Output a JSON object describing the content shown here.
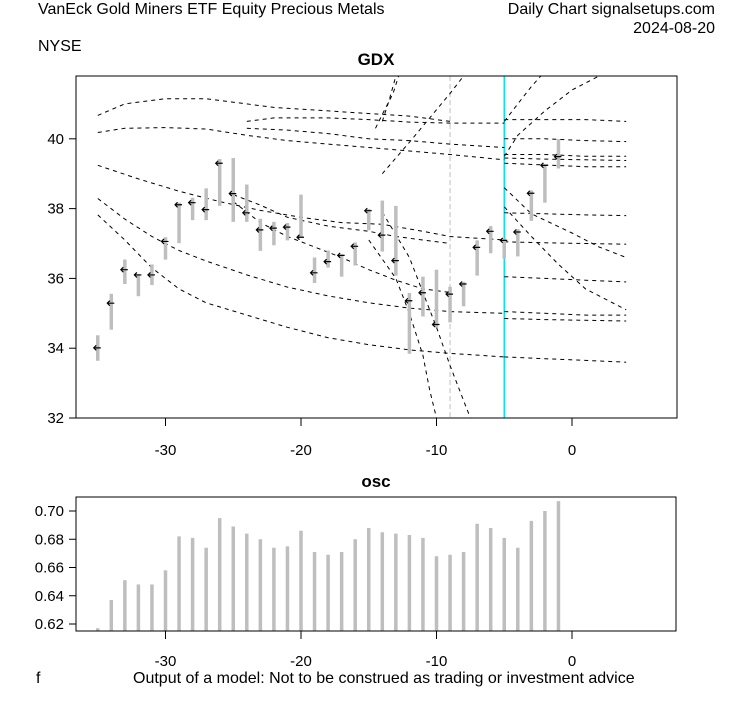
{
  "header": {
    "title_left": "VanEck Gold Miners ETF Equity Precious Metals",
    "title_right": "Daily Chart signalsetups.com",
    "date": "2024-08-20",
    "exchange": "NYSE"
  },
  "footer": {
    "left": "f",
    "note": "Output of a model: Not to be construed as trading or investment advice"
  },
  "colors": {
    "bar": "#bebebe",
    "curve": "#000000",
    "marker_line": "#00e5ee",
    "reference_line": "#bebebe"
  },
  "chart_data": [
    {
      "type": "line",
      "title": "GDX",
      "xlabel": "",
      "ylabel": "",
      "xlim": [
        -36.5,
        7.8
      ],
      "ylim": [
        32,
        41.8
      ],
      "x_ticks": [
        -30,
        -20,
        -10,
        0
      ],
      "x_tick_labels": [
        "-30",
        "-20",
        "-10",
        "0"
      ],
      "y_ticks": [
        32,
        34,
        36,
        38,
        40
      ],
      "y_tick_labels": [
        "32",
        "34",
        "36",
        "38",
        "40"
      ],
      "grid": false,
      "vertical_lines": [
        {
          "x": -9,
          "style": "dashed",
          "color": "#bebebe"
        },
        {
          "x": -5,
          "style": "solid",
          "color": "#00e5ee"
        }
      ],
      "bars": {
        "x": [
          -35,
          -34,
          -33,
          -32,
          -31,
          -30,
          -29,
          -28,
          -27,
          -26,
          -25,
          -24,
          -23,
          -22,
          -21,
          -20,
          -19,
          -18,
          -17,
          -16,
          -15,
          -14,
          -13,
          -12,
          -11,
          -10,
          -9,
          -8,
          -7,
          -6,
          -5,
          -4,
          -3,
          -2,
          -1
        ],
        "high": [
          34.37,
          35.56,
          36.54,
          36.13,
          36.4,
          37.18,
          38.17,
          38.31,
          38.58,
          39.42,
          39.45,
          38.69,
          37.71,
          37.62,
          37.59,
          38.4,
          36.6,
          36.8,
          36.69,
          37.03,
          37.99,
          38.23,
          38.08,
          35.58,
          36.05,
          36.25,
          35.76,
          35.9,
          37.09,
          37.5,
          37.15,
          37.41,
          38.52,
          39.28,
          39.99
        ],
        "low": [
          33.64,
          34.53,
          35.84,
          35.49,
          35.81,
          36.54,
          37.01,
          37.67,
          37.67,
          38.08,
          37.62,
          37.62,
          36.79,
          36.95,
          37.09,
          37.18,
          35.87,
          36.31,
          36.05,
          36.37,
          37.38,
          36.77,
          36.08,
          33.84,
          34.91,
          34.59,
          34.74,
          35.2,
          36.08,
          36.72,
          36.57,
          36.63,
          37.65,
          38.17,
          39.15
        ],
        "close": [
          34.01,
          35.29,
          36.25,
          36.1,
          36.1,
          37.06,
          38.11,
          38.17,
          37.97,
          39.3,
          38.43,
          37.88,
          37.39,
          37.44,
          37.47,
          37.18,
          36.16,
          36.48,
          36.66,
          36.92,
          37.94,
          37.24,
          36.51,
          35.36,
          35.59,
          34.68,
          35.55,
          35.84,
          36.89,
          37.35,
          37.09,
          37.33,
          38.44,
          39.24,
          39.49
        ]
      },
      "curves": [
        {
          "name": "band-1",
          "points": [
            [
              -35,
              40.67
            ],
            [
              -33,
              41.0
            ],
            [
              -30,
              41.15
            ],
            [
              -27,
              41.15
            ],
            [
              -25,
              41.05
            ],
            [
              -22,
              40.9
            ],
            [
              -18,
              40.8
            ],
            [
              -14,
              40.7
            ],
            [
              -12,
              40.65
            ],
            [
              -9,
              40.5
            ]
          ]
        },
        {
          "name": "band-2",
          "points": [
            [
              -35,
              40.18
            ],
            [
              -33,
              40.3
            ],
            [
              -30,
              40.32
            ],
            [
              -27,
              40.28
            ],
            [
              -24,
              40.1
            ],
            [
              -21,
              39.95
            ],
            [
              -18,
              39.85
            ],
            [
              -15,
              39.75
            ],
            [
              -12,
              39.65
            ],
            [
              -9,
              39.55
            ],
            [
              -5,
              39.4
            ]
          ]
        },
        {
          "name": "band-3",
          "points": [
            [
              -35,
              39.24
            ],
            [
              -32,
              38.85
            ],
            [
              -29,
              38.5
            ],
            [
              -26,
              38.2
            ],
            [
              -23,
              37.95
            ],
            [
              -20,
              37.75
            ],
            [
              -17,
              37.6
            ],
            [
              -14,
              37.55
            ],
            [
              -11,
              37.35
            ],
            [
              -9,
              37.2
            ],
            [
              -5,
              37.1
            ]
          ]
        },
        {
          "name": "band-4",
          "points": [
            [
              -35,
              38.29
            ],
            [
              -33,
              37.7
            ],
            [
              -31,
              37.2
            ],
            [
              -29,
              36.8
            ],
            [
              -27,
              36.5
            ],
            [
              -24,
              36.1
            ],
            [
              -21,
              35.75
            ],
            [
              -18,
              35.5
            ],
            [
              -15,
              35.3
            ],
            [
              -12,
              35.15
            ],
            [
              -9,
              35.05
            ],
            [
              -5,
              35.0
            ]
          ]
        },
        {
          "name": "band-5",
          "points": [
            [
              -35,
              37.82
            ],
            [
              -33,
              37.1
            ],
            [
              -31,
              36.3
            ],
            [
              -29,
              35.7
            ],
            [
              -27,
              35.3
            ],
            [
              -24,
              34.95
            ],
            [
              -21,
              34.6
            ],
            [
              -18,
              34.3
            ],
            [
              -15,
              34.1
            ],
            [
              -12,
              33.95
            ],
            [
              -9,
              33.85
            ],
            [
              -5,
              33.75
            ]
          ]
        },
        {
          "name": "band-6",
          "points": [
            [
              -24,
              40.5
            ],
            [
              -22,
              40.6
            ],
            [
              -18,
              40.6
            ],
            [
              -15,
              40.55
            ],
            [
              -12,
              40.48
            ],
            [
              -9,
              40.45
            ],
            [
              -5,
              40.45
            ]
          ]
        },
        {
          "name": "band-7",
          "points": [
            [
              -24,
              40.3
            ],
            [
              -21,
              40.25
            ],
            [
              -18,
              40.15
            ],
            [
              -15,
              40.0
            ],
            [
              -12,
              39.95
            ],
            [
              -9,
              39.85
            ],
            [
              -5,
              39.75
            ]
          ]
        },
        {
          "name": "band-8",
          "points": [
            [
              -25,
              38.4
            ],
            [
              -23,
              38.1
            ],
            [
              -21,
              37.75
            ],
            [
              -18,
              37.5
            ],
            [
              -15,
              37.35
            ],
            [
              -13,
              37.2
            ],
            [
              -11,
              37.1
            ],
            [
              -9,
              37.0
            ]
          ]
        },
        {
          "name": "band-9",
          "points": [
            [
              -25,
              38.2
            ],
            [
              -23,
              37.6
            ],
            [
              -21,
              37.2
            ],
            [
              -19,
              36.9
            ],
            [
              -17,
              36.6
            ],
            [
              -15,
              36.25
            ],
            [
              -13,
              35.95
            ],
            [
              -11,
              35.7
            ],
            [
              -9,
              35.6
            ]
          ]
        },
        {
          "name": "right-1",
          "points": [
            [
              -5,
              40.55
            ],
            [
              -2,
              40.55
            ],
            [
              1,
              40.55
            ],
            [
              4,
              40.5
            ]
          ]
        },
        {
          "name": "right-2",
          "points": [
            [
              -5,
              40.0
            ],
            [
              -2,
              40.0
            ],
            [
              1,
              39.95
            ],
            [
              4,
              39.92
            ]
          ]
        },
        {
          "name": "right-3",
          "points": [
            [
              -5,
              39.55
            ],
            [
              -2,
              39.55
            ],
            [
              1,
              39.5
            ],
            [
              4,
              39.5
            ]
          ]
        },
        {
          "name": "right-4",
          "points": [
            [
              -5,
              39.45
            ],
            [
              -2,
              39.42
            ],
            [
              1,
              39.4
            ],
            [
              4,
              39.38
            ]
          ]
        },
        {
          "name": "right-5",
          "points": [
            [
              -5,
              39.3
            ],
            [
              -2,
              39.25
            ],
            [
              1,
              39.2
            ],
            [
              4,
              39.2
            ]
          ]
        },
        {
          "name": "right-6",
          "points": [
            [
              -5,
              37.88
            ],
            [
              -2,
              37.85
            ],
            [
              1,
              37.82
            ],
            [
              4,
              37.8
            ]
          ]
        },
        {
          "name": "right-7",
          "points": [
            [
              -5,
              37.05
            ],
            [
              -2,
              37.02
            ],
            [
              1,
              37.0
            ],
            [
              4,
              36.98
            ]
          ]
        },
        {
          "name": "right-8",
          "points": [
            [
              -5,
              36.05
            ],
            [
              -2,
              36.0
            ],
            [
              1,
              35.95
            ],
            [
              4,
              35.9
            ]
          ]
        },
        {
          "name": "right-9",
          "points": [
            [
              -5,
              35.05
            ],
            [
              -2,
              35.0
            ],
            [
              1,
              34.95
            ],
            [
              4,
              34.95
            ]
          ]
        },
        {
          "name": "right-10",
          "points": [
            [
              -5,
              34.85
            ],
            [
              -2,
              34.82
            ],
            [
              1,
              34.8
            ],
            [
              4,
              34.78
            ]
          ]
        },
        {
          "name": "right-11",
          "points": [
            [
              -5,
              33.75
            ],
            [
              -2,
              33.7
            ],
            [
              1,
              33.65
            ],
            [
              4,
              33.6
            ]
          ]
        },
        {
          "name": "fan-up-1",
          "points": [
            [
              -5,
              40.5
            ],
            [
              -4,
              41.0
            ],
            [
              -3,
              41.5
            ],
            [
              -2.3,
              41.8
            ]
          ]
        },
        {
          "name": "fan-up-2",
          "points": [
            [
              -5,
              39.5
            ],
            [
              -4,
              40.1
            ],
            [
              -2,
              40.8
            ],
            [
              0,
              41.4
            ],
            [
              2,
              41.8
            ]
          ]
        },
        {
          "name": "fan-down-1",
          "points": [
            [
              -5,
              38.6
            ],
            [
              -3,
              37.85
            ],
            [
              0,
              37.3
            ],
            [
              2,
              36.9
            ],
            [
              4,
              36.6
            ]
          ]
        },
        {
          "name": "fan-down-2",
          "points": [
            [
              -5,
              38.05
            ],
            [
              -3,
              37.2
            ],
            [
              -1,
              36.4
            ],
            [
              1,
              35.7
            ],
            [
              4,
              35.1
            ]
          ]
        },
        {
          "name": "fan-early-up-1",
          "points": [
            [
              -14,
              39.0
            ],
            [
              -12,
              39.9
            ],
            [
              -10.5,
              40.6
            ],
            [
              -9,
              41.3
            ],
            [
              -8,
              41.8
            ]
          ]
        },
        {
          "name": "fan-early-up-2",
          "points": [
            [
              -14.5,
              40.3
            ],
            [
              -14,
              40.7
            ],
            [
              -13.2,
              41.3
            ],
            [
              -12.8,
              41.8
            ]
          ]
        },
        {
          "name": "fan-early-up-3",
          "points": [
            [
              -14,
              40.5
            ],
            [
              -13.5,
              41.1
            ],
            [
              -13,
              41.8
            ]
          ]
        },
        {
          "name": "fan-early-down-1",
          "points": [
            [
              -14,
              37.9
            ],
            [
              -12,
              36.6
            ],
            [
              -11,
              35.6
            ],
            [
              -10,
              34.6
            ],
            [
              -9,
              33.5
            ],
            [
              -8,
              32.5
            ],
            [
              -7.5,
              32
            ]
          ]
        },
        {
          "name": "fan-early-down-2",
          "points": [
            [
              -15,
              37.1
            ],
            [
              -13,
              36.0
            ],
            [
              -12,
              35.0
            ],
            [
              -11,
              33.8
            ],
            [
              -10.5,
              32.8
            ],
            [
              -10,
              32
            ]
          ]
        }
      ]
    },
    {
      "type": "bar",
      "title": "osc",
      "xlabel": "",
      "ylabel": "",
      "xlim": [
        -36.5,
        7.8
      ],
      "ylim": [
        0.6135,
        0.709
      ],
      "x_ticks": [
        -30,
        -20,
        -10,
        0
      ],
      "x_tick_labels": [
        "-30",
        "-20",
        "-10",
        "0"
      ],
      "y_ticks": [
        0.62,
        0.64,
        0.66,
        0.68,
        0.7
      ],
      "y_tick_labels": [
        "0.62",
        "0.64",
        "0.66",
        "0.68",
        "0.70"
      ],
      "grid": false,
      "x": [
        -35,
        -34,
        -33,
        -32,
        -31,
        -30,
        -29,
        -28,
        -27,
        -26,
        -25,
        -24,
        -23,
        -22,
        -21,
        -20,
        -19,
        -18,
        -17,
        -16,
        -15,
        -14,
        -13,
        -12,
        -11,
        -10,
        -9,
        -8,
        -7,
        -6,
        -5,
        -4,
        -3,
        -2,
        -1
      ],
      "values": [
        0.617,
        0.637,
        0.651,
        0.648,
        0.648,
        0.658,
        0.682,
        0.681,
        0.674,
        0.695,
        0.689,
        0.684,
        0.68,
        0.674,
        0.675,
        0.686,
        0.671,
        0.669,
        0.671,
        0.68,
        0.688,
        0.685,
        0.684,
        0.683,
        0.681,
        0.668,
        0.669,
        0.671,
        0.691,
        0.688,
        0.681,
        0.674,
        0.693,
        0.7,
        0.707
      ]
    }
  ]
}
